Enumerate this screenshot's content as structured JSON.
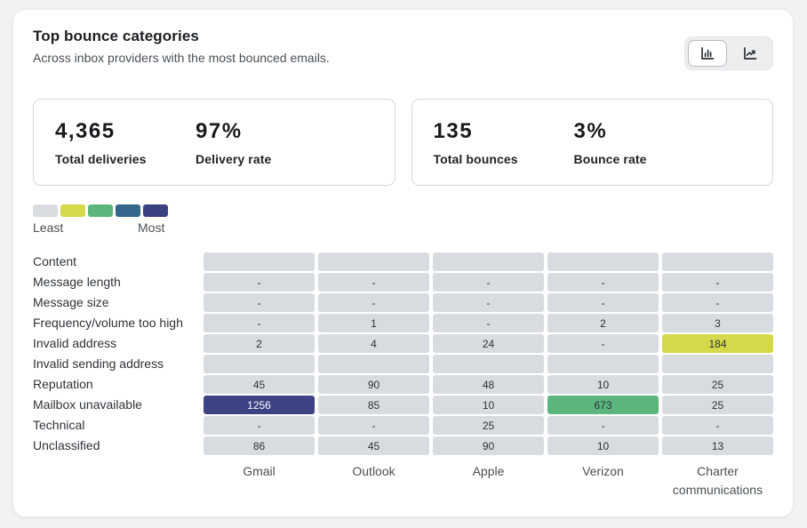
{
  "header": {
    "title": "Top bounce categories",
    "subtitle": "Across inbox providers with the most bounced emails.",
    "view_toggle": {
      "selected": "bar",
      "options": [
        {
          "id": "bar",
          "icon": "bar-chart-icon"
        },
        {
          "id": "line",
          "icon": "line-chart-icon"
        }
      ]
    }
  },
  "stats": {
    "deliveries": {
      "total_value": "4,365",
      "total_label": "Total deliveries",
      "rate_value": "97%",
      "rate_label": "Delivery rate"
    },
    "bounces": {
      "total_value": "135",
      "total_label": "Total bounces",
      "rate_value": "3%",
      "rate_label": "Bounce rate"
    }
  },
  "chart_data": {
    "type": "heatmap",
    "title": "Top bounce categories",
    "columns": [
      "Gmail",
      "Outlook",
      "Apple",
      "Verizon",
      "Charter communications"
    ],
    "legend": {
      "least_label": "Least",
      "most_label": "Most",
      "scale": [
        "#d8dce0",
        "#d4d94a",
        "#5cb57d",
        "#35678d",
        "#3b4080"
      ]
    },
    "palette": {
      "gray": "#d8dce0",
      "yellow": "#d4d94a",
      "green": "#5cb57d",
      "navy": "#3d4284"
    },
    "rows": [
      {
        "label": "Content",
        "cells": [
          {
            "v": "",
            "c": "gray"
          },
          {
            "v": "",
            "c": "gray"
          },
          {
            "v": "",
            "c": "gray"
          },
          {
            "v": "",
            "c": "gray"
          },
          {
            "v": "",
            "c": "gray"
          }
        ]
      },
      {
        "label": "Message length",
        "cells": [
          {
            "v": "-",
            "c": "gray"
          },
          {
            "v": "-",
            "c": "gray"
          },
          {
            "v": "-",
            "c": "gray"
          },
          {
            "v": "-",
            "c": "gray"
          },
          {
            "v": "-",
            "c": "gray"
          }
        ]
      },
      {
        "label": "Message size",
        "cells": [
          {
            "v": "-",
            "c": "gray"
          },
          {
            "v": "-",
            "c": "gray"
          },
          {
            "v": "-",
            "c": "gray"
          },
          {
            "v": "-",
            "c": "gray"
          },
          {
            "v": "-",
            "c": "gray"
          }
        ]
      },
      {
        "label": "Frequency/volume too high",
        "cells": [
          {
            "v": "-",
            "c": "gray"
          },
          {
            "v": "1",
            "c": "gray"
          },
          {
            "v": "-",
            "c": "gray"
          },
          {
            "v": "2",
            "c": "gray"
          },
          {
            "v": "3",
            "c": "gray"
          }
        ]
      },
      {
        "label": "Invalid address",
        "cells": [
          {
            "v": "2",
            "c": "gray"
          },
          {
            "v": "4",
            "c": "gray"
          },
          {
            "v": "24",
            "c": "gray"
          },
          {
            "v": "-",
            "c": "gray"
          },
          {
            "v": "184",
            "c": "yellow"
          }
        ]
      },
      {
        "label": "Invalid sending address",
        "cells": [
          {
            "v": "",
            "c": "gray"
          },
          {
            "v": "",
            "c": "gray"
          },
          {
            "v": "",
            "c": "gray"
          },
          {
            "v": "",
            "c": "gray"
          },
          {
            "v": "",
            "c": "gray"
          }
        ]
      },
      {
        "label": "Reputation",
        "cells": [
          {
            "v": "45",
            "c": "gray"
          },
          {
            "v": "90",
            "c": "gray"
          },
          {
            "v": "48",
            "c": "gray"
          },
          {
            "v": "10",
            "c": "gray"
          },
          {
            "v": "25",
            "c": "gray"
          }
        ]
      },
      {
        "label": "Mailbox unavailable",
        "cells": [
          {
            "v": "1256",
            "c": "navy"
          },
          {
            "v": "85",
            "c": "gray"
          },
          {
            "v": "10",
            "c": "gray"
          },
          {
            "v": "673",
            "c": "green"
          },
          {
            "v": "25",
            "c": "gray"
          }
        ]
      },
      {
        "label": "Technical",
        "cells": [
          {
            "v": "-",
            "c": "gray"
          },
          {
            "v": "-",
            "c": "gray"
          },
          {
            "v": "25",
            "c": "gray"
          },
          {
            "v": "-",
            "c": "gray"
          },
          {
            "v": "-",
            "c": "gray"
          }
        ]
      },
      {
        "label": "Unclassified",
        "cells": [
          {
            "v": "86",
            "c": "gray"
          },
          {
            "v": "45",
            "c": "gray"
          },
          {
            "v": "90",
            "c": "gray"
          },
          {
            "v": "10",
            "c": "gray"
          },
          {
            "v": "13",
            "c": "gray"
          }
        ]
      }
    ]
  }
}
